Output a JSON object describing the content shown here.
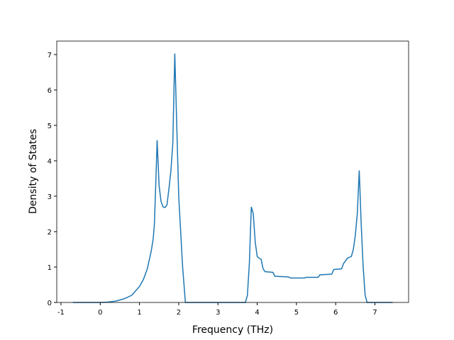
{
  "chart_data": {
    "type": "line",
    "x_label": "Frequency (THz)",
    "y_label": "Density of States",
    "x": [
      -0.7,
      0,
      0.2,
      0.4,
      0.6,
      0.8,
      1.0,
      1.1,
      1.2,
      1.3,
      1.35,
      1.38,
      1.42,
      1.45,
      1.5,
      1.55,
      1.6,
      1.65,
      1.7,
      1.75,
      1.8,
      1.85,
      1.9,
      1.95,
      2.0,
      2.05,
      2.1,
      2.17,
      3.7,
      3.75,
      3.8,
      3.85,
      3.9,
      3.95,
      4.0,
      4.05,
      4.1,
      4.15,
      4.2,
      4.4,
      4.45,
      4.8,
      4.85,
      5.2,
      5.25,
      5.55,
      5.6,
      5.9,
      5.95,
      6.15,
      6.2,
      6.3,
      6.4,
      6.45,
      6.5,
      6.55,
      6.6,
      6.65,
      6.7,
      6.75,
      6.8,
      7.45
    ],
    "series": [
      {
        "color": "#1f77b4",
        "values": [
          0,
          0,
          0.01,
          0.04,
          0.1,
          0.2,
          0.45,
          0.65,
          0.95,
          1.45,
          1.8,
          2.2,
          3.5,
          4.58,
          3.3,
          2.85,
          2.7,
          2.68,
          2.75,
          3.2,
          3.7,
          4.5,
          7.03,
          5.0,
          3.0,
          2.0,
          1.0,
          0,
          0,
          0.2,
          1.1,
          2.7,
          2.5,
          1.7,
          1.3,
          1.25,
          1.22,
          0.95,
          0.87,
          0.85,
          0.74,
          0.72,
          0.69,
          0.69,
          0.71,
          0.71,
          0.78,
          0.8,
          0.93,
          0.95,
          1.1,
          1.25,
          1.3,
          1.5,
          1.9,
          2.5,
          3.73,
          2.2,
          1.0,
          0.2,
          0,
          0
        ]
      }
    ],
    "xlim": [
      -1.1075,
      7.8575
    ],
    "ylim": [
      0,
      7.38
    ],
    "xticks": [
      -1,
      0,
      1,
      2,
      3,
      4,
      5,
      6,
      7
    ],
    "yticks": [
      0,
      1,
      2,
      3,
      4,
      5,
      6,
      7
    ]
  }
}
